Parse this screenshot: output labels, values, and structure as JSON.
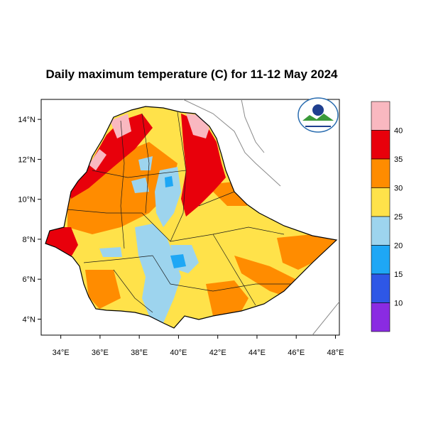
{
  "title": "Daily maximum temperature (C) for 11-12 May 2024",
  "map": {
    "x_ticks": [
      "34°E",
      "36°E",
      "38°E",
      "40°E",
      "42°E",
      "44°E",
      "46°E",
      "48°E"
    ],
    "y_ticks": [
      "14°N",
      "12°N",
      "10°N",
      "8°N",
      "6°N",
      "4°N"
    ],
    "lon_range": [
      33,
      48.2
    ],
    "lat_range": [
      3.2,
      15
    ]
  },
  "legend": {
    "labels": [
      "40",
      "35",
      "30",
      "25",
      "20",
      "15",
      "10"
    ],
    "colors": [
      "#F9B8C0",
      "#E8000B",
      "#FF8C00",
      "#FFE24A",
      "#9DD4EE",
      "#1EA7F5",
      "#2E57E6",
      "#8A2BE2"
    ]
  },
  "logo": {
    "description_icon": "ethiopian-meteorology-logo-icon"
  }
}
